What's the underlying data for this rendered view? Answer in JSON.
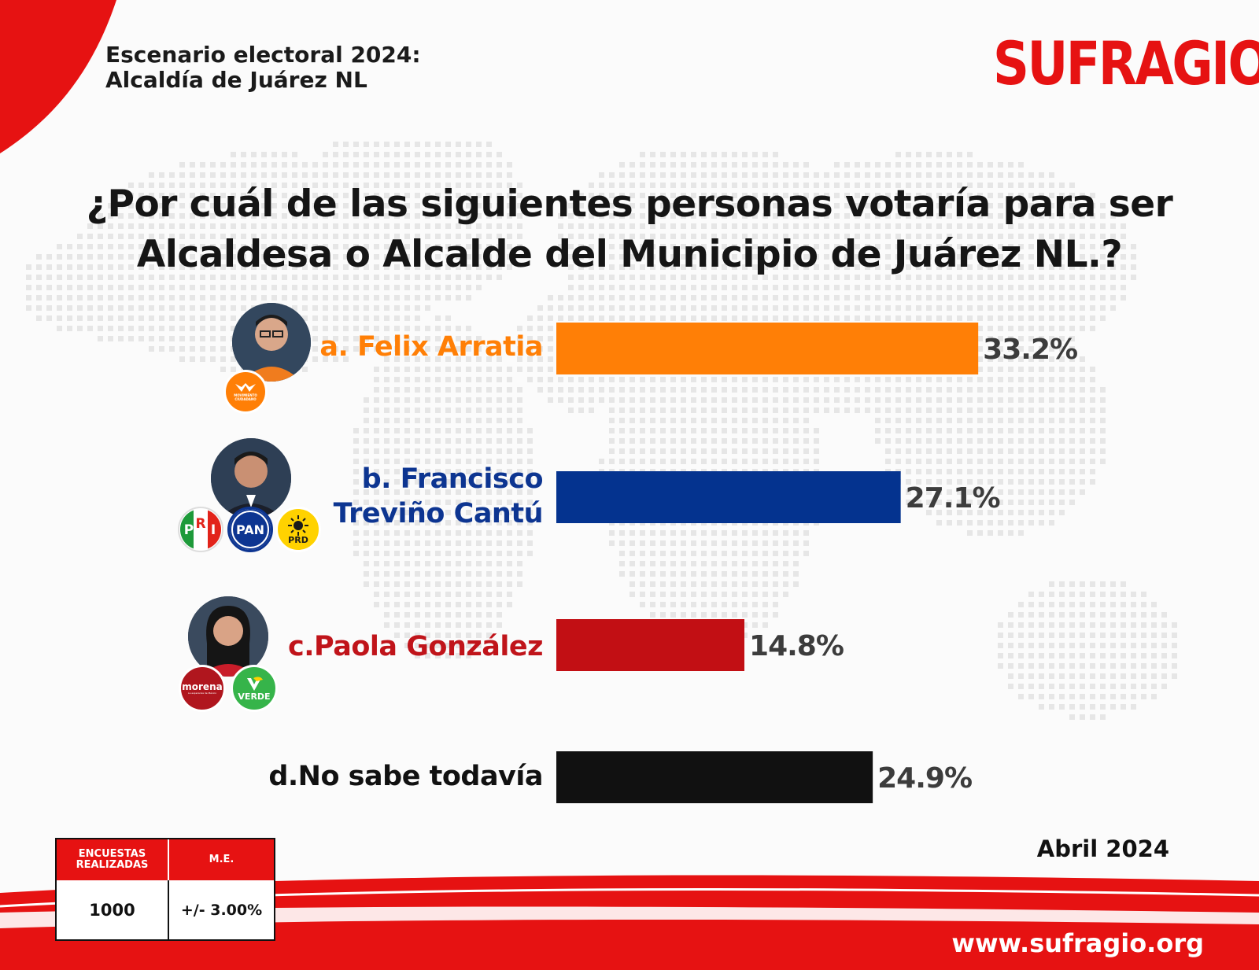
{
  "header": {
    "line1": "Escenario electoral 2024:",
    "line2": "Alcaldía de Juárez NL"
  },
  "brand": {
    "logo_text": "SUFRAGIO",
    "color": "#e61212"
  },
  "question": {
    "line1": "¿Por cuál de las siguientes personas votaría para ser",
    "line2": "Alcaldesa o Alcalde del Municipio de Juárez NL.?"
  },
  "chart_data": {
    "type": "bar",
    "orientation": "horizontal",
    "categories": [
      "a. Felix Arratia",
      "b. Francisco Treviño Cantú",
      "c.Paola González",
      "d.No sabe todavía"
    ],
    "values": [
      33.2,
      27.1,
      14.8,
      24.9
    ],
    "value_labels": [
      "33.2%",
      "27.1%",
      "14.8%",
      "24.9%"
    ],
    "colors": [
      "#ff7f06",
      "#04338f",
      "#c20f14",
      "#111111"
    ],
    "xlim": [
      0,
      100
    ],
    "grid": false,
    "legend": "none"
  },
  "candidates": [
    {
      "label_lines": [
        "a. Felix Arratia"
      ],
      "label_color": "#ff7f06",
      "parties": [
        "MOVIMIENTO CIUDADANO"
      ]
    },
    {
      "label_lines": [
        "b. Francisco",
        "Treviño Cantú"
      ],
      "label_color": "#0d3591",
      "parties": [
        "PRI",
        "PAN",
        "PRD"
      ]
    },
    {
      "label_lines": [
        "c.Paola González"
      ],
      "label_color": "#c0141a",
      "parties": [
        "morena",
        "VERDE"
      ]
    },
    {
      "label_lines": [
        "d.No sabe todavía"
      ],
      "label_color": "#111111",
      "parties": []
    }
  ],
  "parties": {
    "mc": {
      "name": "MOVIMIENTO CIUDADANO",
      "color": "#ff7f06"
    },
    "pri_r": "R",
    "pri_p": "P",
    "pri_i": "I",
    "pan": "PAN",
    "prd": "PRD",
    "morena": "morena",
    "morena_tagline": "La esperanza de México",
    "verde": "VERDE"
  },
  "survey_table": {
    "header_surveys": "ENCUESTAS REALIZADAS",
    "header_me": "M.E.",
    "surveys": "1000",
    "margin": "+/- 3.00%"
  },
  "date": "Abril 2024",
  "website": "www.sufragio.org"
}
